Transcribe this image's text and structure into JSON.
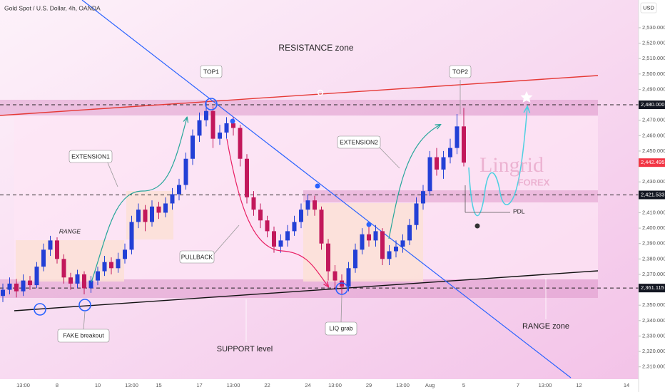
{
  "chart_data": {
    "type": "candlestick",
    "title": "Gold Spot / U.S. Dollar, 4h, OANDA",
    "currency": "USD",
    "watermark": [
      "Lingrid",
      "FOREX"
    ],
    "annotations": [
      "RESISTANCE zone",
      "TOP1",
      "TOP2",
      "EXTENSION1",
      "EXTENSION2",
      "RANGE",
      "PULLBACK",
      "FAKE breakout",
      "LIQ grab",
      "SUPPORT level",
      "RANGE zone",
      "PDL"
    ],
    "categories": [
      null,
      null,
      null,
      "13:00",
      null,
      null,
      null,
      null,
      "8",
      null,
      null,
      null,
      null,
      null,
      "10",
      null,
      null,
      null,
      null,
      "13:00",
      null,
      null,
      null,
      "15",
      null,
      null,
      null,
      null,
      null,
      "17",
      null,
      null,
      null,
      null,
      "13:00",
      null,
      null,
      null,
      null,
      "22",
      null,
      null,
      null,
      null,
      null,
      "24",
      null,
      null,
      null,
      "13:00",
      null,
      null,
      null,
      null,
      "29",
      null,
      null,
      null,
      null,
      "13:00",
      null,
      null,
      null,
      "Aug",
      null,
      null,
      null,
      null,
      "5",
      null,
      null,
      null,
      null,
      null,
      null,
      null,
      "7",
      null,
      null,
      null,
      "13:00",
      null,
      null,
      null,
      null,
      "12",
      null,
      null,
      null,
      null,
      null,
      null,
      "14",
      null
    ],
    "ohlc": {
      "open": [
        2356,
        2360,
        2364,
        2359,
        2366,
        2363,
        2375,
        2386,
        2392,
        2380,
        2368,
        2364,
        2370,
        2361,
        2366,
        2372,
        2378,
        2374,
        2380,
        2386,
        2404,
        2412,
        2404,
        2414,
        2410,
        2416,
        2422,
        2428,
        2445,
        2460,
        2470,
        2476,
        2458,
        2462,
        2468,
        2465,
        2445,
        2420,
        2412,
        2405,
        2398,
        2388,
        2392,
        2398,
        2404,
        2412,
        2418,
        2412,
        2390,
        2372,
        2366,
        2362,
        2374,
        2386,
        2396,
        2392,
        2398,
        2380,
        2385,
        2388,
        2392,
        2402,
        2416,
        2424,
        2446,
        2438,
        2446,
        2452,
        2466,
        null,
        null,
        null,
        null,
        null,
        null,
        null,
        null,
        null,
        null,
        null,
        null,
        null,
        null,
        null,
        null,
        null,
        null,
        null,
        null,
        null,
        null,
        null,
        null,
        null
      ],
      "high": [
        2364,
        2368,
        2367,
        2370,
        2369,
        2378,
        2390,
        2395,
        2394,
        2383,
        2371,
        2373,
        2372,
        2369,
        2375,
        2382,
        2381,
        2384,
        2390,
        2408,
        2416,
        2415,
        2418,
        2417,
        2420,
        2426,
        2432,
        2449,
        2464,
        2475,
        2482,
        2479,
        2467,
        2472,
        2472,
        2467,
        2448,
        2424,
        2416,
        2408,
        2401,
        2396,
        2402,
        2408,
        2416,
        2422,
        2421,
        2414,
        2393,
        2376,
        2370,
        2378,
        2390,
        2400,
        2402,
        2402,
        2400,
        2389,
        2392,
        2396,
        2406,
        2420,
        2428,
        2450,
        2452,
        2450,
        2458,
        2474,
        2478,
        null,
        null,
        null,
        null,
        null,
        null,
        null,
        null,
        null,
        null,
        null,
        null,
        null,
        null,
        null,
        null,
        null,
        null,
        null,
        null,
        null,
        null,
        null,
        null,
        null
      ],
      "low": [
        2352,
        2357,
        2355,
        2356,
        2360,
        2361,
        2372,
        2382,
        2377,
        2364,
        2360,
        2361,
        2357,
        2358,
        2363,
        2369,
        2370,
        2371,
        2377,
        2383,
        2400,
        2398,
        2401,
        2406,
        2407,
        2412,
        2418,
        2425,
        2441,
        2456,
        2466,
        2452,
        2454,
        2458,
        2460,
        2440,
        2416,
        2408,
        2400,
        2394,
        2384,
        2384,
        2388,
        2395,
        2400,
        2408,
        2408,
        2386,
        2366,
        2360,
        2357,
        2359,
        2371,
        2383,
        2388,
        2388,
        2376,
        2376,
        2381,
        2384,
        2389,
        2399,
        2412,
        2421,
        2434,
        2432,
        2442,
        2448,
        2440,
        null,
        null,
        null,
        null,
        null,
        null,
        null,
        null,
        null,
        null,
        null,
        null,
        null,
        null,
        null,
        null,
        null,
        null,
        null,
        null,
        null,
        null,
        null,
        null,
        null
      ],
      "close": [
        2360,
        2364,
        2359,
        2366,
        2363,
        2375,
        2386,
        2392,
        2380,
        2368,
        2364,
        2370,
        2361,
        2366,
        2372,
        2378,
        2374,
        2380,
        2386,
        2404,
        2412,
        2404,
        2414,
        2410,
        2416,
        2422,
        2428,
        2445,
        2460,
        2470,
        2476,
        2458,
        2462,
        2468,
        2465,
        2445,
        2420,
        2412,
        2405,
        2398,
        2388,
        2392,
        2398,
        2404,
        2412,
        2418,
        2412,
        2390,
        2372,
        2366,
        2362,
        2374,
        2386,
        2396,
        2392,
        2398,
        2380,
        2385,
        2388,
        2392,
        2402,
        2416,
        2424,
        2446,
        2438,
        2446,
        2452,
        2466,
        2442.495,
        null,
        null,
        null,
        null,
        null,
        null,
        null,
        null,
        null,
        null,
        null,
        null,
        null,
        null,
        null,
        null,
        null,
        null,
        null,
        null,
        null,
        null,
        null,
        null,
        null
      ]
    },
    "up_color": "#2340d6",
    "down_color": "#c2185b",
    "ylim": [
      2302,
      2548
    ],
    "yticks": [
      {
        "value": 2530,
        "label": "2,530.000"
      },
      {
        "value": 2520,
        "label": "2,520.000"
      },
      {
        "value": 2510,
        "label": "2,510.000"
      },
      {
        "value": 2500,
        "label": "2,500.000"
      },
      {
        "value": 2490,
        "label": "2,490.000"
      },
      {
        "value": 2470,
        "label": "2,470.000"
      },
      {
        "value": 2460,
        "label": "2,460.000"
      },
      {
        "value": 2450,
        "label": "2,450.000"
      },
      {
        "value": 2430,
        "label": "2,430.000"
      },
      {
        "value": 2410,
        "label": "2,410.000"
      },
      {
        "value": 2400,
        "label": "2,400.000"
      },
      {
        "value": 2390,
        "label": "2,390.000"
      },
      {
        "value": 2380,
        "label": "2,380.000"
      },
      {
        "value": 2370,
        "label": "2,370.000"
      },
      {
        "value": 2350,
        "label": "2,350.000"
      },
      {
        "value": 2340,
        "label": "2,340.000"
      },
      {
        "value": 2330,
        "label": "2,330.000"
      },
      {
        "value": 2320,
        "label": "2,320.000"
      },
      {
        "value": 2310,
        "label": "2,310.000"
      }
    ],
    "levels": [
      {
        "value": 2480,
        "label": "2,480.000"
      },
      {
        "value": 2421.533,
        "label": "2,421.533"
      },
      {
        "value": 2361.115,
        "label": "2,361.115"
      }
    ],
    "last_price": {
      "value": 2442.495,
      "label": "2,442.495"
    },
    "grid": false
  }
}
